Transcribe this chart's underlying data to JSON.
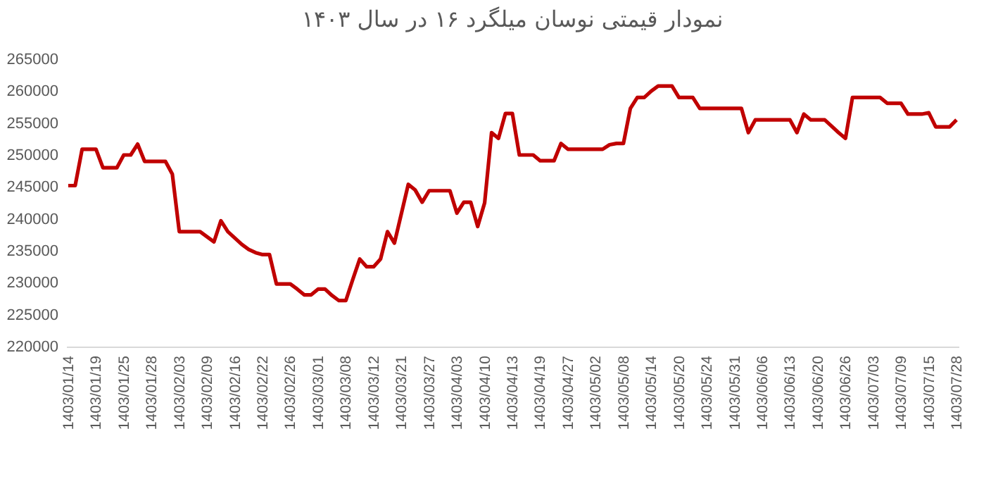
{
  "chart_data": {
    "type": "line",
    "title": "نمودار قیمتی نوسان میلگرد ۱۶ در سال ۱۴۰۳",
    "categories": [
      "1403/01/14",
      null,
      null,
      null,
      "1403/01/19",
      null,
      null,
      null,
      "1403/01/25",
      null,
      null,
      null,
      "1403/01/28",
      null,
      null,
      null,
      "1403/02/03",
      null,
      null,
      null,
      "1403/02/09",
      null,
      null,
      null,
      "1403/02/16",
      null,
      null,
      null,
      "1403/02/22",
      null,
      null,
      null,
      "1403/02/26",
      null,
      null,
      null,
      "1403/03/01",
      null,
      null,
      null,
      "1403/03/08",
      null,
      null,
      null,
      "1403/03/12",
      null,
      null,
      null,
      "1403/03/21",
      null,
      null,
      null,
      "1403/03/27",
      null,
      null,
      null,
      "1403/04/03",
      null,
      null,
      null,
      "1403/04/10",
      null,
      null,
      null,
      "1403/04/13",
      null,
      null,
      null,
      "1403/04/19",
      null,
      null,
      null,
      "1403/04/27",
      null,
      null,
      null,
      "1403/05/02",
      null,
      null,
      null,
      "1403/05/08",
      null,
      null,
      null,
      "1403/05/14",
      null,
      null,
      null,
      "1403/05/20",
      null,
      null,
      null,
      "1403/05/24",
      null,
      null,
      null,
      "1403/05/31",
      null,
      null,
      null,
      "1403/06/06",
      null,
      null,
      null,
      "1403/06/13",
      null,
      null,
      null,
      "1403/06/20",
      null,
      null,
      null,
      "1403/06/26",
      null,
      null,
      null,
      "1403/07/03",
      null,
      null,
      null,
      "1403/07/09",
      null,
      null,
      null,
      "1403/07/15",
      null,
      null,
      null,
      "1403/07/28"
    ],
    "series": [
      {
        "color": "#c00000",
        "values": [
          245200,
          245200,
          250900,
          250900,
          250900,
          248000,
          248000,
          248000,
          250000,
          250000,
          251700,
          249000,
          249000,
          249000,
          249000,
          247000,
          238000,
          238000,
          238000,
          238000,
          237200,
          236400,
          239700,
          238000,
          237000,
          236000,
          235200,
          234700,
          234400,
          234400,
          229800,
          229800,
          229800,
          229000,
          228100,
          228100,
          229000,
          229000,
          228000,
          227200,
          227200,
          230500,
          233700,
          232500,
          232500,
          233700,
          238000,
          236200,
          240800,
          245400,
          244500,
          242600,
          244400,
          244400,
          244400,
          244400,
          240900,
          242600,
          242600,
          238800,
          242500,
          253500,
          252600,
          256500,
          256500,
          250000,
          250000,
          250000,
          249100,
          249100,
          249100,
          251800,
          250900,
          250900,
          250900,
          250900,
          250900,
          250900,
          251600,
          251800,
          251800,
          257300,
          259000,
          259000,
          260000,
          260800,
          260800,
          260800,
          259000,
          259000,
          259000,
          257300,
          257300,
          257300,
          257300,
          257300,
          257300,
          257300,
          253500,
          255500,
          255500,
          255500,
          255500,
          255500,
          255500,
          253500,
          256400,
          255500,
          255500,
          255500,
          254500,
          253500,
          252600,
          259000,
          259000,
          259000,
          259000,
          259000,
          258100,
          258100,
          258100,
          256400,
          256400,
          256400,
          256600,
          254400,
          254400,
          254400,
          255500
        ]
      }
    ],
    "ylim": [
      220000,
      265000
    ],
    "yticks": [
      220000,
      225000,
      230000,
      235000,
      240000,
      245000,
      250000,
      255000,
      260000,
      265000
    ],
    "grid": false,
    "marker": "none",
    "line_style": "solid"
  }
}
